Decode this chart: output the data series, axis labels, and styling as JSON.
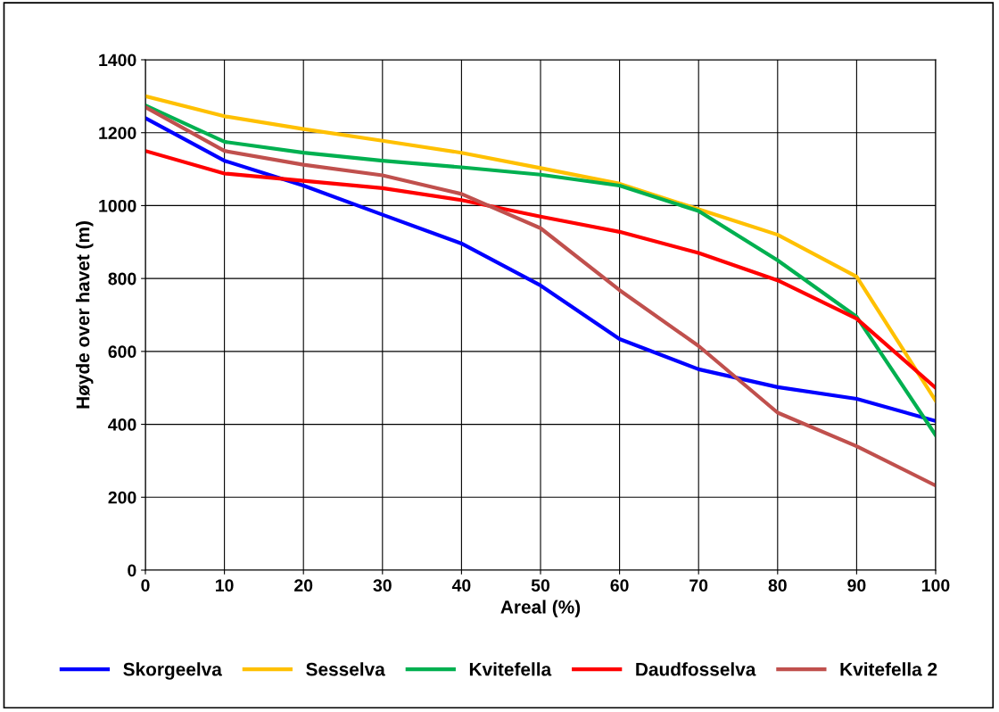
{
  "chart_data": {
    "type": "line",
    "xlabel": "Areal (%)",
    "ylabel": "Høyde over havet (m)",
    "x": [
      0,
      10,
      20,
      30,
      40,
      50,
      60,
      70,
      80,
      90,
      100
    ],
    "series": [
      {
        "name": "Skorgeelva",
        "color": "#0000ff",
        "values": [
          1240,
          1123,
          1055,
          975,
          896,
          781,
          634,
          551,
          502,
          470,
          409
        ]
      },
      {
        "name": "Sesselva",
        "color": "#ffc000",
        "values": [
          1300,
          1245,
          1210,
          1178,
          1145,
          1103,
          1060,
          990,
          920,
          805,
          465
        ]
      },
      {
        "name": "Kvitefella",
        "color": "#00b050",
        "values": [
          1275,
          1175,
          1145,
          1123,
          1105,
          1085,
          1055,
          985,
          850,
          695,
          370
        ]
      },
      {
        "name": "Daudfosselva",
        "color": "#ff0000",
        "values": [
          1150,
          1088,
          1068,
          1048,
          1015,
          970,
          928,
          870,
          795,
          690,
          500
        ]
      },
      {
        "name": "Kvitefella 2",
        "color": "#c0504d",
        "values": [
          1270,
          1150,
          1112,
          1083,
          1032,
          938,
          768,
          615,
          432,
          340,
          232
        ]
      }
    ],
    "xlim": [
      0,
      100
    ],
    "xticks": [
      0,
      10,
      20,
      30,
      40,
      50,
      60,
      70,
      80,
      90,
      100
    ],
    "ylim": [
      0,
      1400
    ],
    "yticks": [
      0,
      200,
      400,
      600,
      800,
      1000,
      1200,
      1400
    ],
    "grid": true,
    "legend": "bottom",
    "marker": "none",
    "line_style": "solid"
  }
}
